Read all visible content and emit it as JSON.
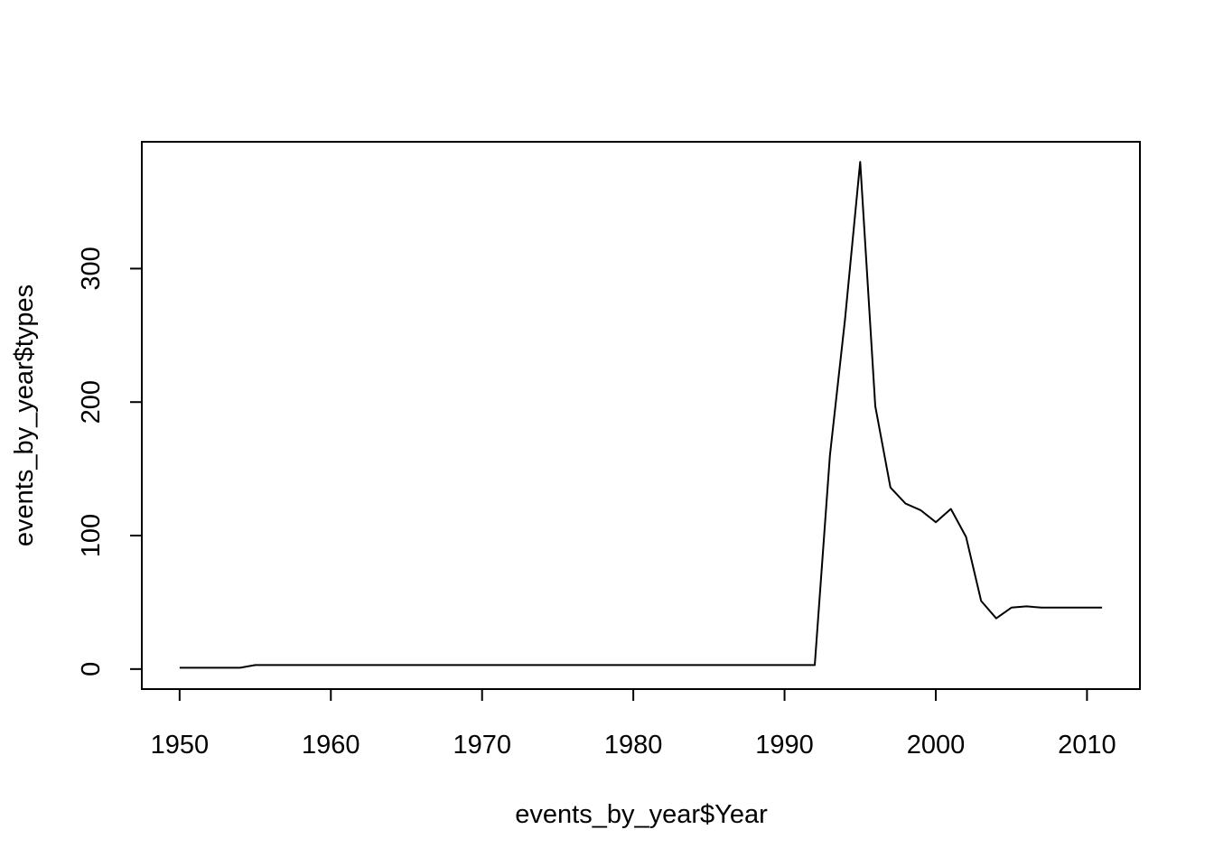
{
  "chart_data": {
    "type": "line",
    "title": "",
    "xlabel": "events_by_year$Year",
    "ylabel": "events_by_year$types",
    "xlim": [
      1947.5,
      2013.5
    ],
    "ylim": [
      -15,
      395
    ],
    "x_ticks": [
      1950,
      1960,
      1970,
      1980,
      1990,
      2000,
      2010
    ],
    "x_tick_labels": [
      "1950",
      "1960",
      "1970",
      "1980",
      "1990",
      "2000",
      "2010"
    ],
    "y_ticks": [
      0,
      100,
      200,
      300
    ],
    "y_tick_labels": [
      "0",
      "100",
      "200",
      "300"
    ],
    "grid": false,
    "series": [
      {
        "x": [
          1950,
          1951,
          1952,
          1953,
          1954,
          1955,
          1956,
          1957,
          1958,
          1959,
          1960,
          1961,
          1962,
          1963,
          1964,
          1965,
          1966,
          1967,
          1968,
          1969,
          1970,
          1971,
          1972,
          1973,
          1974,
          1975,
          1976,
          1977,
          1978,
          1979,
          1980,
          1981,
          1982,
          1983,
          1984,
          1985,
          1986,
          1987,
          1988,
          1989,
          1990,
          1991,
          1992,
          1993,
          1994,
          1995,
          1996,
          1997,
          1998,
          1999,
          2000,
          2001,
          2002,
          2003,
          2004,
          2005,
          2006,
          2007,
          2008,
          2009,
          2010,
          2011
        ],
        "values": [
          1,
          1,
          1,
          1,
          1,
          3,
          3,
          3,
          3,
          3,
          3,
          3,
          3,
          3,
          3,
          3,
          3,
          3,
          3,
          3,
          3,
          3,
          3,
          3,
          3,
          3,
          3,
          3,
          3,
          3,
          3,
          3,
          3,
          3,
          3,
          3,
          3,
          3,
          3,
          3,
          3,
          3,
          3,
          160,
          262,
          380,
          197,
          136,
          124,
          119,
          110,
          120,
          99,
          51,
          38,
          46,
          47,
          46,
          46,
          46,
          46,
          46
        ]
      }
    ]
  }
}
